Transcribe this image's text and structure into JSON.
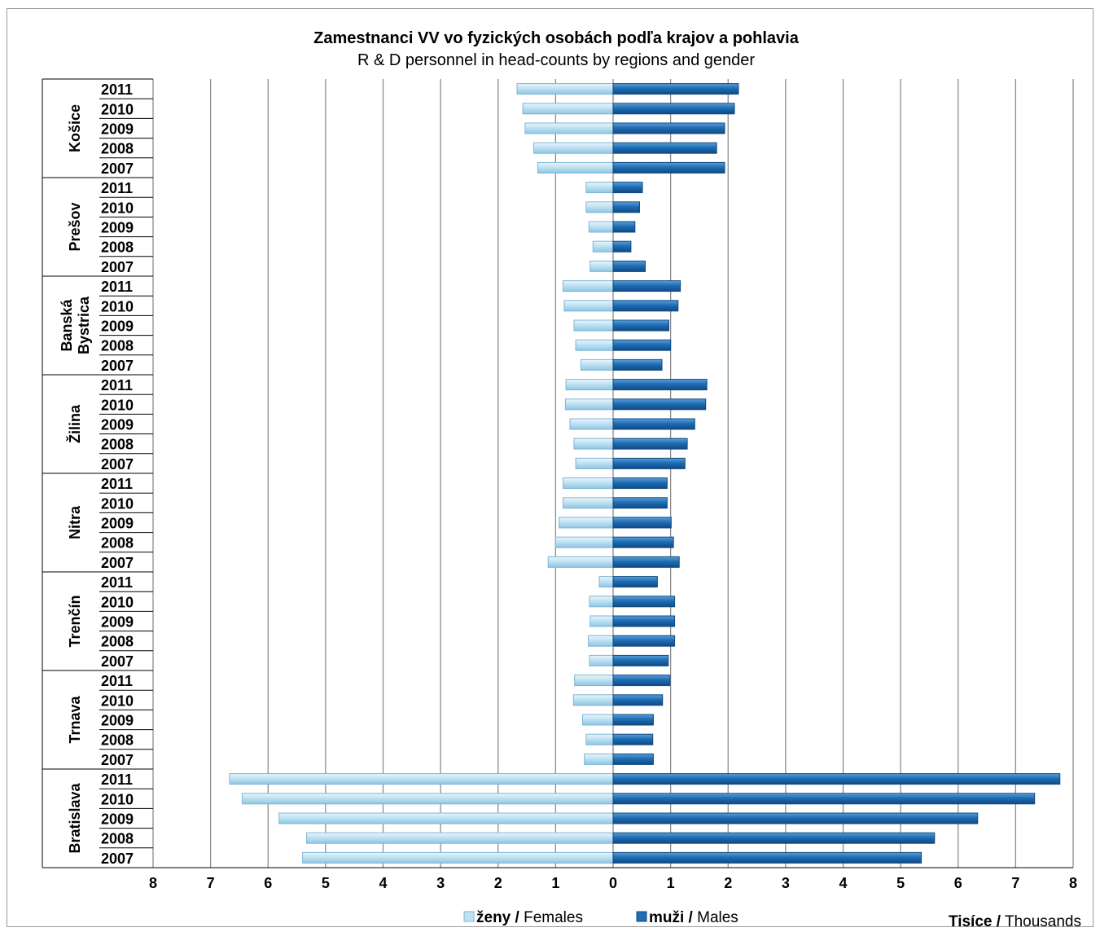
{
  "chart_data": {
    "type": "bar",
    "orientation": "horizontal",
    "layout": "population-pyramid",
    "title": "Zamestnanci  VV vo fyzických osobách podľa krajov a pohlavia",
    "subtitle": "R & D personnel in head-counts by regions and gender",
    "unit_label": {
      "bold": "Tisíce /",
      "normal": " Thousands"
    },
    "xlim": [
      -8,
      8
    ],
    "x_ticks": [
      8,
      7,
      6,
      5,
      4,
      3,
      2,
      1,
      0,
      1,
      2,
      3,
      4,
      5,
      6,
      7,
      8
    ],
    "years": [
      "2011",
      "2010",
      "2009",
      "2008",
      "2007"
    ],
    "grid": true,
    "legend_position": "bottom",
    "colors": {
      "females": "#bfe2f3",
      "males": "#1f6db3"
    },
    "series": [
      {
        "name": "ženy / Females",
        "label_bold": "ženy /",
        "label_normal": " Females",
        "key": "females"
      },
      {
        "name": "muži / Males",
        "label_bold": "muži /",
        "label_normal": " Males",
        "key": "males"
      }
    ],
    "regions": [
      {
        "name": "Košice",
        "label_lines": [
          "Košice"
        ],
        "females": [
          1.67,
          1.57,
          1.53,
          1.38,
          1.31
        ],
        "males": [
          2.18,
          2.11,
          1.94,
          1.8,
          1.94
        ]
      },
      {
        "name": "Prešov",
        "label_lines": [
          "Prešov"
        ],
        "females": [
          0.47,
          0.47,
          0.42,
          0.35,
          0.4
        ],
        "males": [
          0.51,
          0.46,
          0.38,
          0.31,
          0.56
        ]
      },
      {
        "name": "Banská Bystrica",
        "label_lines": [
          "Banská",
          "Bystrica"
        ],
        "females": [
          0.87,
          0.85,
          0.68,
          0.65,
          0.56
        ],
        "males": [
          1.17,
          1.13,
          0.97,
          1.0,
          0.85
        ]
      },
      {
        "name": "Žilina",
        "label_lines": [
          "Žilina"
        ],
        "females": [
          0.82,
          0.83,
          0.75,
          0.68,
          0.65
        ],
        "males": [
          1.63,
          1.61,
          1.42,
          1.29,
          1.25
        ]
      },
      {
        "name": "Nitra",
        "label_lines": [
          "Nitra"
        ],
        "females": [
          0.87,
          0.87,
          0.94,
          1.0,
          1.13
        ],
        "males": [
          0.94,
          0.94,
          1.01,
          1.05,
          1.15
        ]
      },
      {
        "name": "Trenčín",
        "label_lines": [
          "Trenčín"
        ],
        "females": [
          0.24,
          0.41,
          0.4,
          0.43,
          0.41
        ],
        "males": [
          0.77,
          1.07,
          1.07,
          1.07,
          0.96
        ]
      },
      {
        "name": "Trnava",
        "label_lines": [
          "Trnava"
        ],
        "females": [
          0.67,
          0.69,
          0.53,
          0.47,
          0.5
        ],
        "males": [
          0.99,
          0.86,
          0.7,
          0.69,
          0.7
        ]
      },
      {
        "name": "Bratislava",
        "label_lines": [
          "Bratislava"
        ],
        "females": [
          6.67,
          6.45,
          5.81,
          5.33,
          5.4
        ],
        "males": [
          7.77,
          7.33,
          6.34,
          5.59,
          5.36
        ]
      }
    ]
  }
}
